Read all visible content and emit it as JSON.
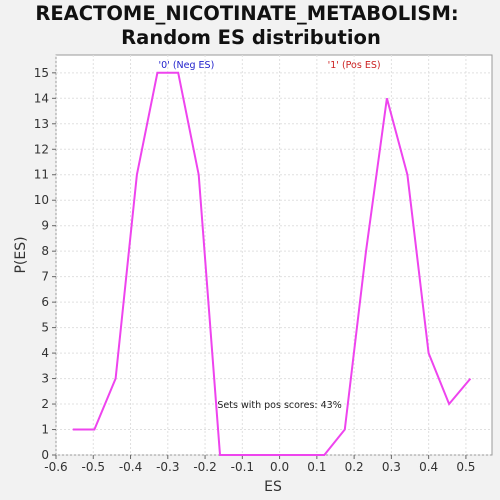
{
  "chart_data": {
    "type": "line",
    "title_line1": "REACTOME_NICOTINATE_METABOLISM:",
    "title_line2": "Random ES distribution",
    "xlabel": "ES",
    "ylabel": "P(ES)",
    "xlim": [
      -0.6,
      0.57
    ],
    "ylim": [
      0,
      15.7
    ],
    "xticks": [
      -0.6,
      -0.5,
      -0.4,
      -0.3,
      -0.2,
      -0.1,
      0.0,
      0.1,
      0.2,
      0.3,
      0.4,
      0.5
    ],
    "xtick_labels": [
      "-0.6",
      "-0.5",
      "-0.4",
      "-0.3",
      "-0.2",
      "-0.1",
      "0.0",
      "0.1",
      "0.2",
      "0.3",
      "0.4",
      "0.5"
    ],
    "yticks": [
      0,
      1,
      2,
      3,
      4,
      5,
      6,
      7,
      8,
      9,
      10,
      11,
      12,
      13,
      14,
      15
    ],
    "ytick_labels": [
      "0",
      "1",
      "2",
      "3",
      "4",
      "5",
      "6",
      "7",
      "8",
      "9",
      "10",
      "11",
      "12",
      "13",
      "14",
      "15"
    ],
    "grid": true,
    "series": [
      {
        "color": "#ee44ee",
        "x": [
          -0.555,
          -0.497,
          -0.44,
          -0.383,
          -0.328,
          -0.272,
          -0.217,
          -0.16,
          -0.105,
          -0.05,
          0.007,
          0.063,
          0.12,
          0.175,
          0.232,
          0.288,
          0.343,
          0.4,
          0.455,
          0.512
        ],
        "y": [
          1,
          1,
          3,
          11,
          15,
          15,
          11,
          0,
          0,
          0,
          0,
          0,
          0,
          1,
          8,
          14,
          11,
          4,
          2,
          3
        ]
      }
    ],
    "legend": [
      {
        "label": "'0' (Neg ES)",
        "color": "#2222cc",
        "x": -0.25
      },
      {
        "label": "'1' (Pos ES)",
        "color": "#cc2222",
        "x": 0.2
      }
    ],
    "annotation": "Sets with pos scores: 43%",
    "annotation_x": 0.0,
    "annotation_y": 2
  }
}
